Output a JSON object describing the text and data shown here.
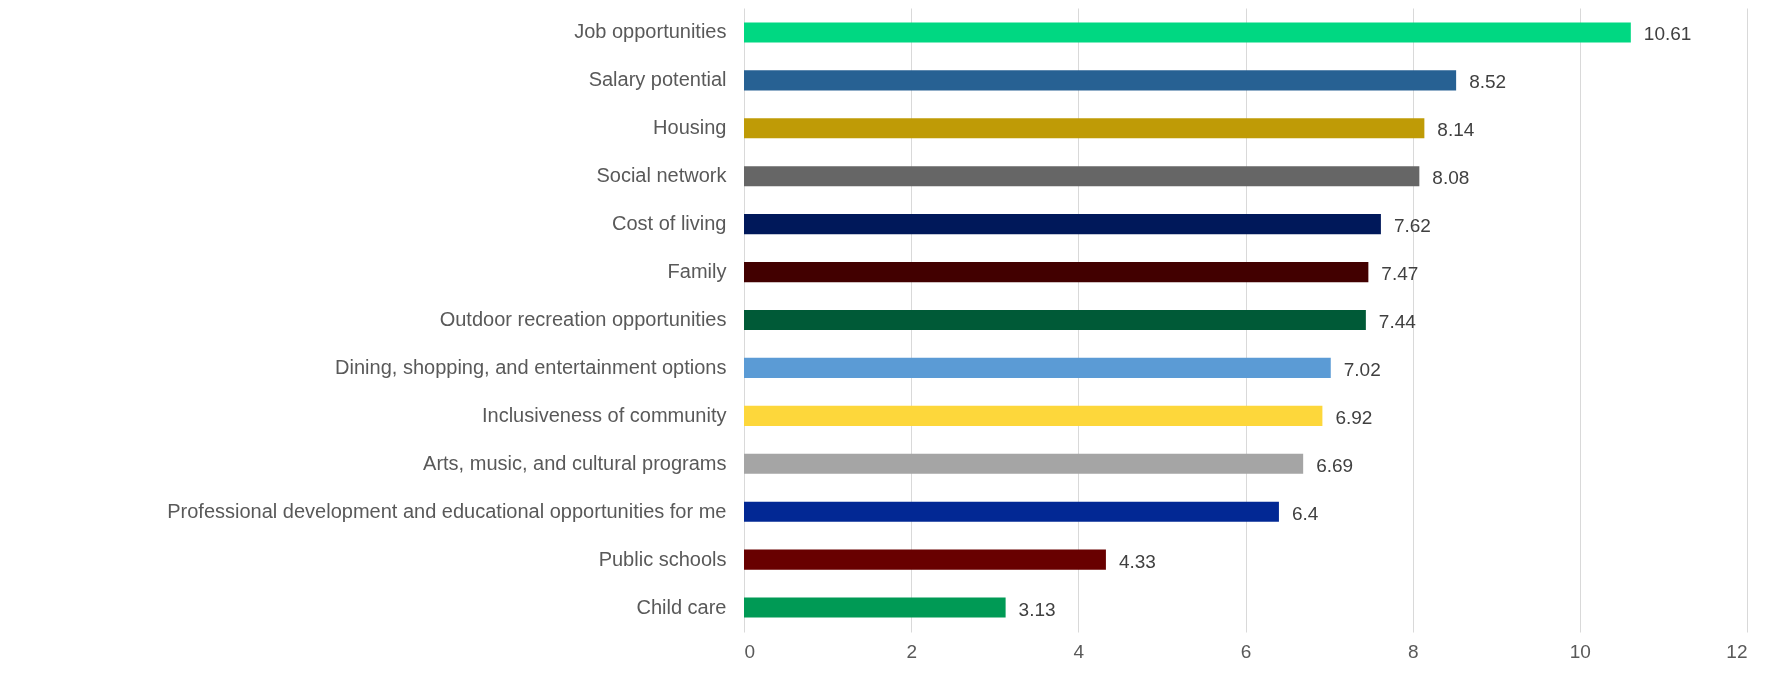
{
  "chart_data": {
    "type": "bar",
    "orientation": "horizontal",
    "categories": [
      "Job opportunities",
      "Salary potential",
      "Housing",
      "Social network",
      "Cost of living",
      "Family",
      "Outdoor recreation opportunities",
      "Dining, shopping, and entertainment options",
      "Inclusiveness of community",
      "Arts, music, and cultural programs",
      "Professional development and educational opportunities for me",
      "Public schools",
      "Child care"
    ],
    "values": [
      10.61,
      8.52,
      8.14,
      8.08,
      7.62,
      7.47,
      7.44,
      7.02,
      6.92,
      6.69,
      6.4,
      4.33,
      3.13
    ],
    "colors": [
      "#00d882",
      "#276193",
      "#bf9b06",
      "#666666",
      "#00185a",
      "#420000",
      "#005a37",
      "#5b9bd5",
      "#fdd73b",
      "#a5a5a5",
      "#022894",
      "#680000",
      "#009a55"
    ],
    "xlim": [
      0,
      12
    ],
    "xticks": [
      0,
      2,
      4,
      6,
      8,
      10,
      12
    ],
    "grid": "x",
    "data_labels": true
  }
}
